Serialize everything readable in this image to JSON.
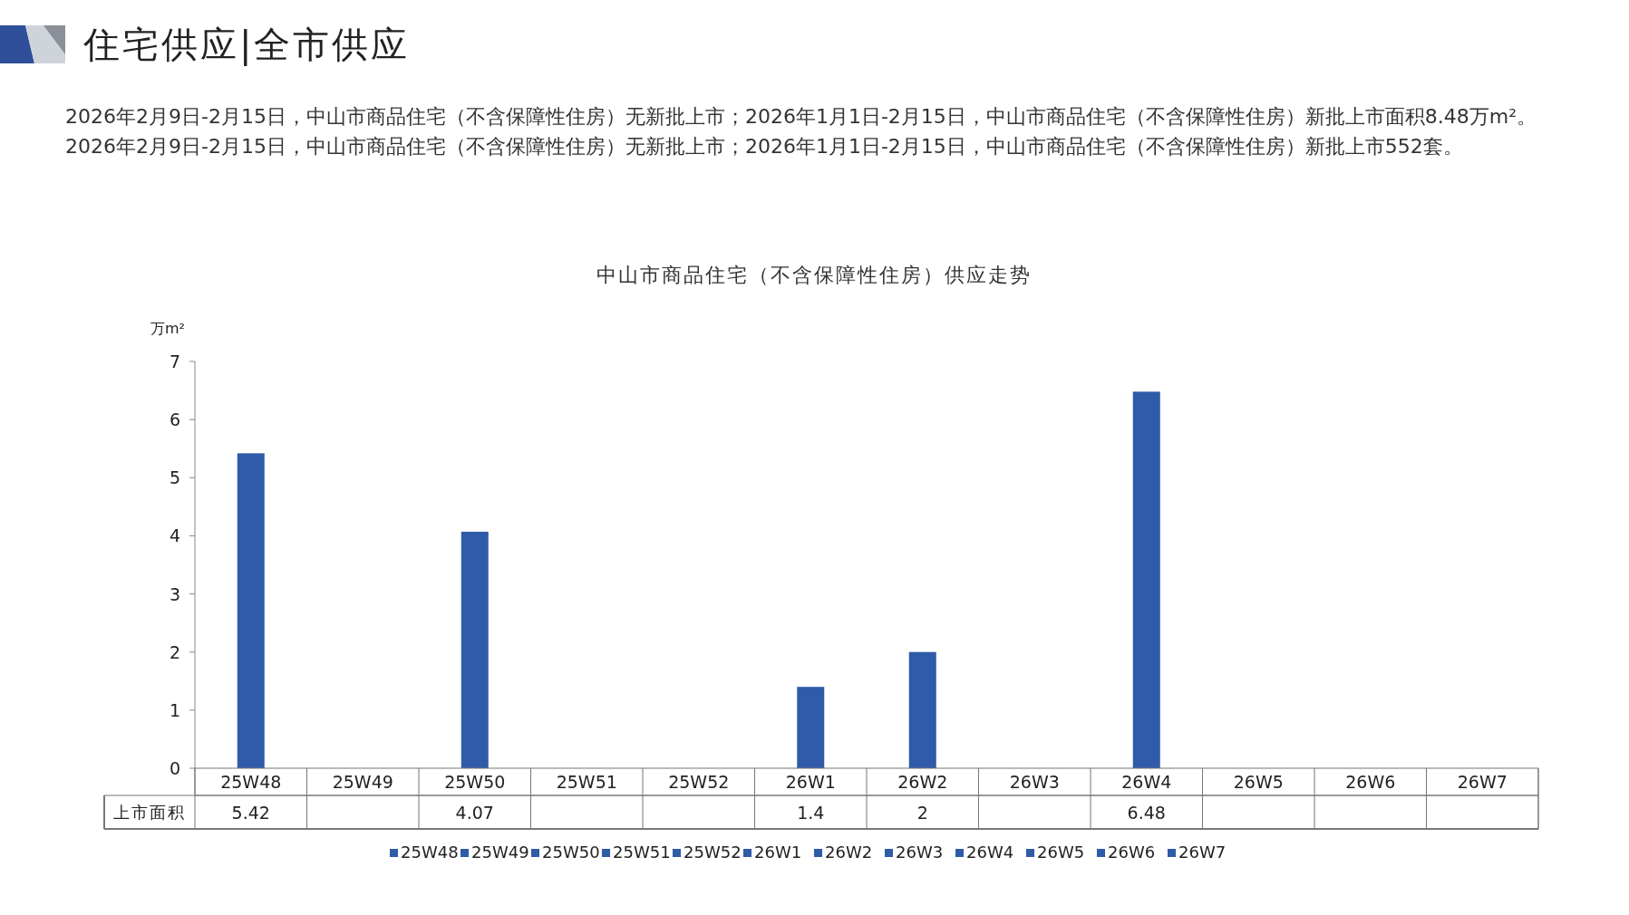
{
  "chart_data": {
    "type": "bar",
    "title": "住宅供应|全市供应",
    "subtitle": "2026年2月9日-2月15日，中山市商品住宅（不含保障性住房）无新批上市；2026年1月1日-2月15日，中山市商品住宅（不含保障性住房）新批上市面积8.48万m²。2026年2月9日-2月15日，中山市商品住宅（不含保障性住房）无新批上市；2026年1月1日-2月15日，中山市商品住宅（不含保障性住房）新批上市552套。",
    "annotations": [
      "中山市商品住宅（不含保障性住房）供应走势",
      "上市面积"
    ],
    "ylabel": "万m²",
    "categories": [
      "25W48",
      "25W49",
      "25W50",
      "25W51",
      "25W52",
      "26W1",
      "26W2",
      "26W3",
      "26W4",
      "26W5",
      "26W6",
      "26W7"
    ],
    "ylim": [
      0,
      7
    ],
    "yticks": [
      0,
      1,
      2,
      3,
      4,
      5,
      6,
      7
    ],
    "grid": false,
    "legend": "bottom",
    "data_labels": true,
    "series": [
      {
        "name": "25W48",
        "color": "#2f5ba8",
        "values": [
          5.42,
          null,
          null,
          null,
          null,
          null,
          null,
          null,
          null,
          null,
          null,
          null
        ]
      },
      {
        "name": "25W49",
        "color": "#2f5ba8",
        "values": [
          null,
          null,
          null,
          null,
          null,
          null,
          null,
          null,
          null,
          null,
          null,
          null
        ]
      },
      {
        "name": "25W50",
        "color": "#2f5ba8",
        "values": [
          null,
          null,
          4.07,
          null,
          null,
          null,
          null,
          null,
          null,
          null,
          null,
          null
        ]
      },
      {
        "name": "25W51",
        "color": "#2f5ba8",
        "values": [
          null,
          null,
          null,
          null,
          null,
          null,
          null,
          null,
          null,
          null,
          null,
          null
        ]
      },
      {
        "name": "25W52",
        "color": "#2f5ba8",
        "values": [
          null,
          null,
          null,
          null,
          null,
          null,
          null,
          null,
          null,
          null,
          null,
          null
        ]
      },
      {
        "name": "26W1",
        "color": "#2f5ba8",
        "values": [
          null,
          null,
          null,
          null,
          null,
          1.4,
          null,
          null,
          null,
          null,
          null,
          null
        ]
      },
      {
        "name": "26W2",
        "color": "#2f5ba8",
        "values": [
          null,
          null,
          null,
          null,
          null,
          null,
          2,
          null,
          null,
          null,
          null,
          null
        ]
      },
      {
        "name": "26W3",
        "color": "#2f5ba8",
        "values": [
          null,
          null,
          null,
          null,
          null,
          null,
          null,
          null,
          null,
          null,
          null,
          null
        ]
      },
      {
        "name": "26W4",
        "color": "#2f5ba8",
        "values": [
          null,
          null,
          null,
          null,
          null,
          null,
          null,
          null,
          6.48,
          null,
          null,
          null
        ]
      },
      {
        "name": "26W5",
        "color": "#2f5ba8",
        "values": [
          null,
          null,
          null,
          null,
          null,
          null,
          null,
          null,
          null,
          null,
          null,
          null
        ]
      },
      {
        "name": "26W6",
        "color": "#2f5ba8",
        "values": [
          null,
          null,
          null,
          null,
          null,
          null,
          null,
          null,
          null,
          null,
          null,
          null
        ]
      },
      {
        "name": "26W7",
        "color": "#2f5ba8",
        "values": [
          null,
          null,
          null,
          null,
          null,
          null,
          null,
          null,
          null,
          null,
          null,
          null
        ]
      }
    ]
  }
}
